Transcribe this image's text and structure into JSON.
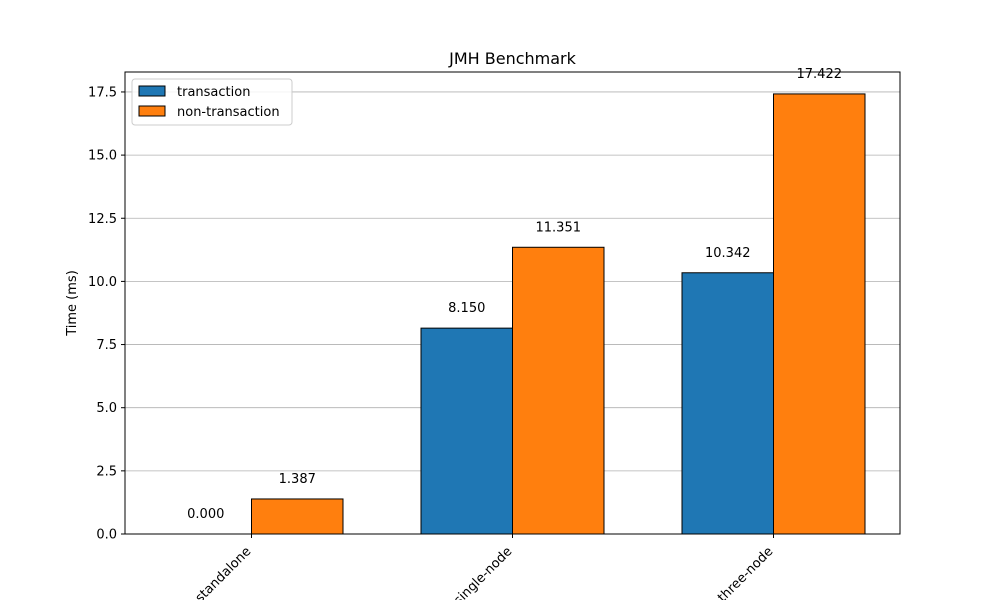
{
  "chart_data": {
    "type": "bar",
    "title": "JMH Benchmark",
    "xlabel": "",
    "ylabel": "Time (ms)",
    "categories": [
      "standalone",
      "single-node",
      "three-node"
    ],
    "series": [
      {
        "name": "transaction",
        "color": "#1f77b4",
        "values": [
          0.0,
          8.15,
          10.342
        ],
        "labels": [
          "0.000",
          "8.150",
          "10.342"
        ]
      },
      {
        "name": "non-transaction",
        "color": "#ff7f0e",
        "values": [
          1.387,
          11.351,
          17.422
        ],
        "labels": [
          "1.387",
          "11.351",
          "17.422"
        ]
      }
    ],
    "ylim": [
      0,
      18.29
    ],
    "yticks": [
      0,
      2.5,
      5,
      7.5,
      10,
      12.5,
      15,
      17.5
    ],
    "ytick_labels": [
      "0.0",
      "2.5",
      "5.0",
      "7.5",
      "10.0",
      "12.5",
      "15.0",
      "17.5"
    ],
    "grid": "y",
    "legend_position": "top-left"
  }
}
